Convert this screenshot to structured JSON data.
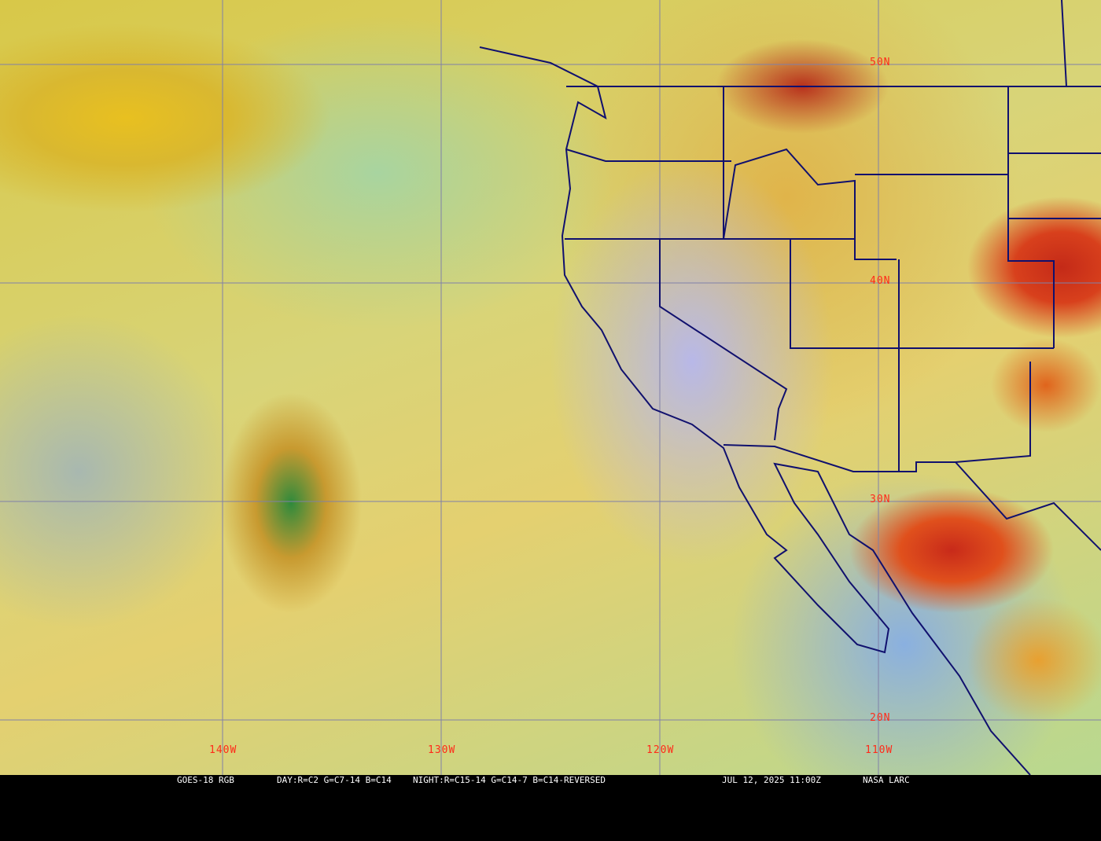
{
  "map": {
    "lat_labels": [
      "50N",
      "40N",
      "30N",
      "20N"
    ],
    "lon_labels": [
      "140W",
      "130W",
      "120W",
      "110W"
    ],
    "label_color": "#ff2a1a",
    "grid_color": "#8080a8",
    "border_color": "#10106e"
  },
  "caption": {
    "satellite": "GOES-18 RGB",
    "day": "DAY:R=C2 G=C7-14 B=C14",
    "night": "NIGHT:R=C15-14 G=C14-7 B=C14-REVERSED",
    "datetime": "JUL 12, 2025 11:00Z",
    "source": "NASA LARC"
  }
}
